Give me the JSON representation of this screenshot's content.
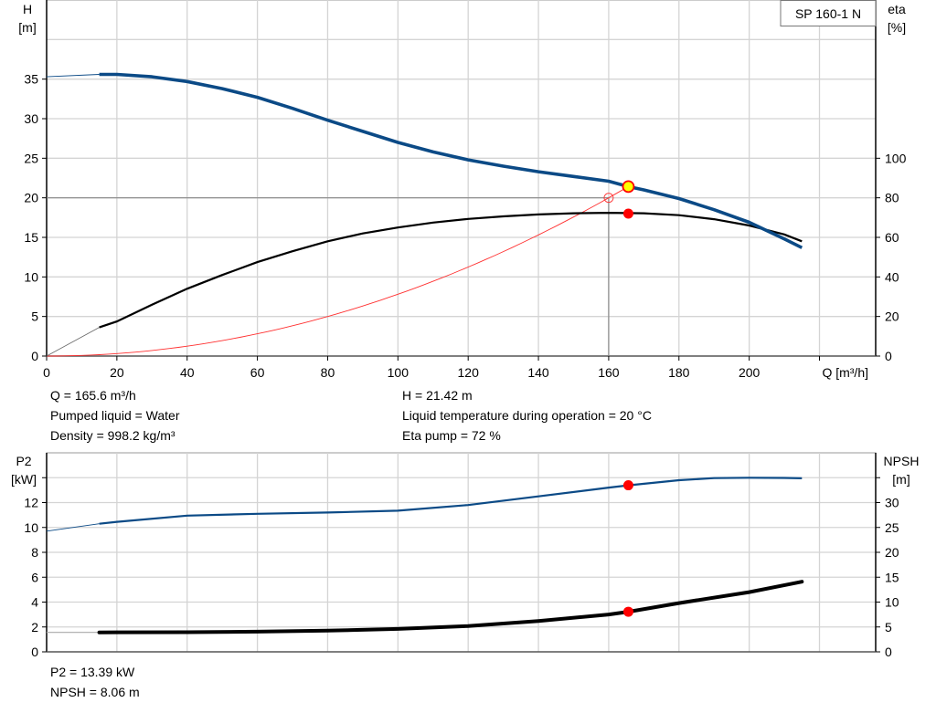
{
  "colors": {
    "head": "#0b4a86",
    "efficiency": "#000000",
    "system": "#ff3030",
    "power": "#0b4a86",
    "npsh": "#000000",
    "duty_point": "#ff0000",
    "duty_point_fill_head": "#ffff00",
    "grid": "#d4d4d4"
  },
  "chart_data": [
    {
      "type": "line",
      "legend": "SP 160-1 N",
      "legend_placement": "top-right",
      "grid": true,
      "xlabel": "Q [m³/h]",
      "xlim": [
        0,
        236
      ],
      "xticks": [
        0,
        20,
        40,
        60,
        80,
        100,
        120,
        140,
        160,
        180,
        200
      ],
      "ylabel_left": [
        "H",
        "[m]"
      ],
      "ylim_left": [
        0,
        45
      ],
      "yticks_left": [
        0,
        5,
        10,
        15,
        20,
        25,
        30,
        35
      ],
      "ylabel_right": [
        "eta",
        "[%]"
      ],
      "ylim_right": [
        0,
        180
      ],
      "yticks_right": [
        0,
        20,
        40,
        60,
        80,
        100
      ],
      "series": [
        {
          "key": "head",
          "axis": "left",
          "x": [
            15,
            20,
            30,
            40,
            50,
            60,
            70,
            80,
            90,
            100,
            110,
            120,
            130,
            140,
            150,
            160,
            165.6,
            170,
            180,
            190,
            200,
            210,
            215
          ],
          "y": [
            35.6,
            35.6,
            35.3,
            34.7,
            33.8,
            32.7,
            31.3,
            29.8,
            28.4,
            27.0,
            25.8,
            24.8,
            24.0,
            23.3,
            22.7,
            22.1,
            21.42,
            21.0,
            19.9,
            18.5,
            16.9,
            14.8,
            13.7
          ],
          "extrapolated": {
            "x": [
              0,
              15
            ],
            "y": [
              35.3,
              35.6
            ]
          }
        },
        {
          "key": "efficiency",
          "axis": "right",
          "x": [
            15,
            20,
            30,
            40,
            50,
            60,
            70,
            80,
            90,
            100,
            110,
            120,
            130,
            140,
            150,
            160,
            170,
            180,
            190,
            200,
            210,
            215
          ],
          "y": [
            14.5,
            17.5,
            26,
            34,
            41,
            47.5,
            53,
            58,
            62,
            65,
            67.5,
            69.3,
            70.6,
            71.6,
            72.2,
            72.4,
            72.2,
            71.2,
            69.2,
            66,
            61.5,
            58
          ],
          "extrapolated": {
            "x": [
              0,
              15
            ],
            "y": [
              0,
              14.5
            ]
          }
        },
        {
          "key": "system",
          "axis": "left",
          "equation": "H = 21.42 * (Q / 165.6)^2",
          "x_range": [
            0,
            165.6
          ]
        }
      ],
      "duty_point": {
        "Q": 165.6,
        "H": 21.42,
        "eta": 72
      },
      "requested_point": {
        "Q": 160,
        "H": 20
      }
    },
    {
      "type": "line",
      "grid": true,
      "xlim": [
        0,
        236
      ],
      "ylabel_left": [
        "P2",
        "[kW]"
      ],
      "ylim_left": [
        0,
        16
      ],
      "yticks_left": [
        0,
        2,
        4,
        6,
        8,
        10,
        12
      ],
      "ylabel_right": [
        "NPSH",
        "[m]"
      ],
      "ylim_right": [
        0,
        40
      ],
      "yticks_right": [
        0,
        5,
        10,
        15,
        20,
        25,
        30
      ],
      "series": [
        {
          "key": "power",
          "axis": "left",
          "x": [
            15,
            20,
            40,
            60,
            80,
            100,
            120,
            140,
            160,
            165.6,
            180,
            190,
            200,
            210,
            215
          ],
          "y": [
            10.3,
            10.45,
            10.95,
            11.1,
            11.2,
            11.35,
            11.8,
            12.5,
            13.2,
            13.39,
            13.8,
            13.97,
            14.0,
            13.98,
            13.95
          ],
          "extrapolated": {
            "x": [
              0,
              15
            ],
            "y": [
              9.7,
              10.3
            ]
          }
        },
        {
          "key": "npsh",
          "axis": "right",
          "x": [
            15,
            40,
            60,
            80,
            100,
            120,
            140,
            160,
            165.6,
            180,
            200,
            215
          ],
          "y": [
            3.9,
            3.95,
            4.05,
            4.25,
            4.6,
            5.2,
            6.2,
            7.5,
            8.06,
            9.8,
            12.0,
            14.1
          ],
          "extrapolated": {
            "x": [
              0,
              15
            ],
            "y": [
              3.9,
              3.9
            ]
          }
        }
      ],
      "duty_point": {
        "Q": 165.6,
        "P2": 13.39,
        "NPSH": 8.06
      }
    }
  ],
  "info_top": {
    "q": "Q = 165.6 m³/h",
    "liquid": "Pumped liquid = Water",
    "density": "Density = 998.2 kg/m³",
    "h": "H = 21.42 m",
    "temp": "Liquid temperature during operation = 20 °C",
    "eta": "Eta pump = 72 %"
  },
  "info_bottom": {
    "p2": "P2 = 13.39 kW",
    "npsh": "NPSH = 8.06 m"
  }
}
